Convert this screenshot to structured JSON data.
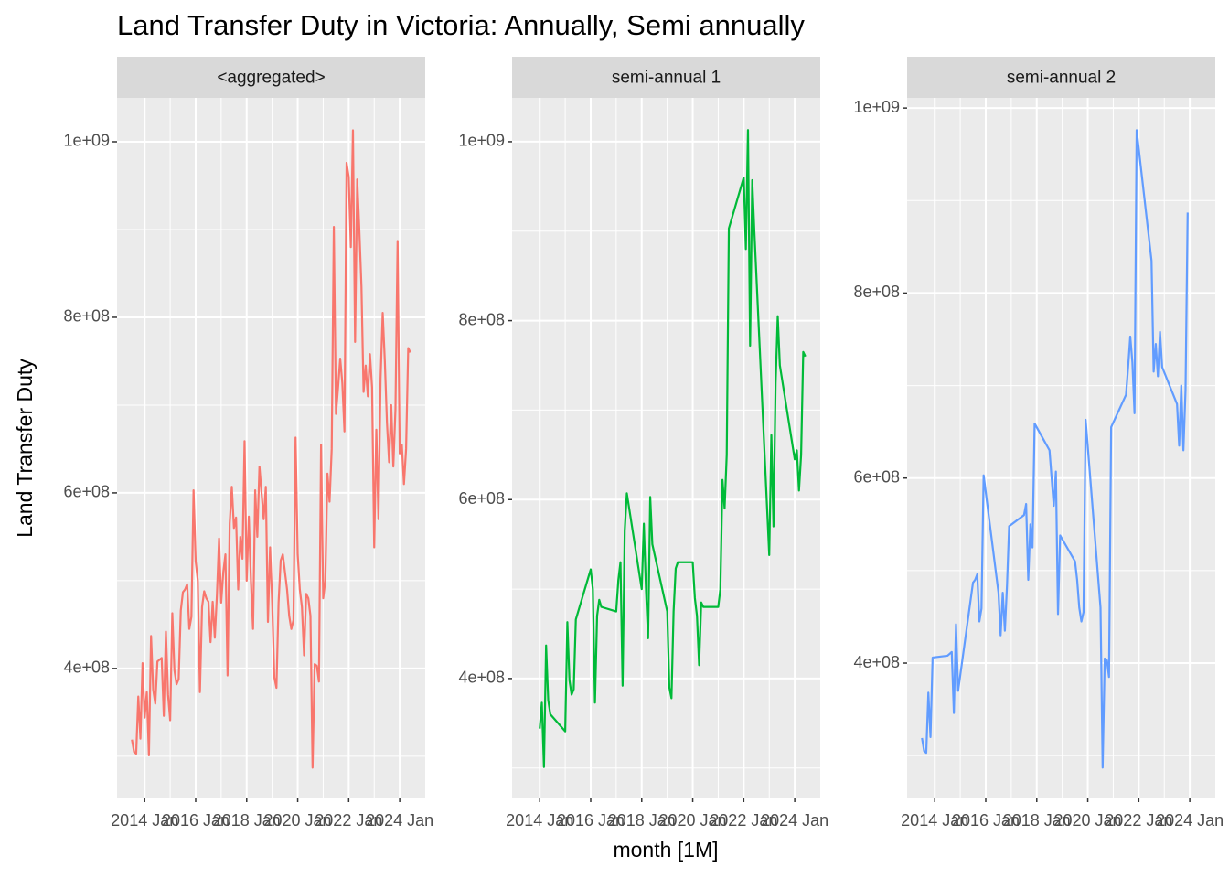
{
  "chart_data": {
    "type": "line",
    "title": "Land Transfer Duty in Victoria: Annually, Semi annually",
    "x_label": "month [1M]",
    "y_label": "Land Transfer Duty",
    "grid": true,
    "facets": [
      {
        "name": "<aggregated>",
        "color": "#F8766D",
        "xlim": [
          "2012 Dec",
          "2025 Jan"
        ],
        "xticks": [
          "2014 Jan",
          "2016 Jan",
          "2018 Jan",
          "2020 Jan",
          "2022 Jan",
          "2024 Jan"
        ],
        "x_minor_ticks": [
          "2015 Jan",
          "2017 Jan",
          "2019 Jan",
          "2021 Jan",
          "2023 Jan"
        ],
        "ylim": [
          253000000.0,
          1050000000.0
        ],
        "yticks": [
          {
            "value": 400000000.0,
            "label": "4e+08"
          },
          {
            "value": 600000000.0,
            "label": "6e+08"
          },
          {
            "value": 800000000.0,
            "label": "8e+08"
          },
          {
            "value": 1000000000.0,
            "label": "1e+09"
          }
        ],
        "y_minor_ticks": [
          300000000.0,
          500000000.0,
          700000000.0,
          900000000.0
        ],
        "x": [
          "2013 Jul",
          "2013 Aug",
          "2013 Sep",
          "2013 Oct",
          "2013 Nov",
          "2013 Dec",
          "2014 Jan",
          "2014 Feb",
          "2014 Mar",
          "2014 Apr",
          "2014 May",
          "2014 Jun",
          "2014 Jul",
          "2014 Aug",
          "2014 Sep",
          "2014 Oct",
          "2014 Nov",
          "2014 Dec",
          "2015 Jan",
          "2015 Feb",
          "2015 Mar",
          "2015 Apr",
          "2015 May",
          "2015 Jun",
          "2015 Jul",
          "2015 Aug",
          "2015 Sep",
          "2015 Oct",
          "2015 Nov",
          "2015 Dec",
          "2016 Jan",
          "2016 Feb",
          "2016 Mar",
          "2016 Apr",
          "2016 May",
          "2016 Jun",
          "2016 Jul",
          "2016 Aug",
          "2016 Sep",
          "2016 Oct",
          "2016 Nov",
          "2016 Dec",
          "2017 Jan",
          "2017 Feb",
          "2017 Mar",
          "2017 Apr",
          "2017 May",
          "2017 Jun",
          "2017 Jul",
          "2017 Aug",
          "2017 Sep",
          "2017 Oct",
          "2017 Nov",
          "2017 Dec",
          "2018 Jan",
          "2018 Feb",
          "2018 Mar",
          "2018 Apr",
          "2018 May",
          "2018 Jun",
          "2018 Jul",
          "2018 Aug",
          "2018 Sep",
          "2018 Oct",
          "2018 Nov",
          "2018 Dec",
          "2019 Jan",
          "2019 Feb",
          "2019 Mar",
          "2019 Apr",
          "2019 May",
          "2019 Jun",
          "2019 Jul",
          "2019 Aug",
          "2019 Sep",
          "2019 Oct",
          "2019 Nov",
          "2019 Dec",
          "2020 Jan",
          "2020 Feb",
          "2020 Mar",
          "2020 Apr",
          "2020 May",
          "2020 Jun",
          "2020 Jul",
          "2020 Aug",
          "2020 Sep",
          "2020 Oct",
          "2020 Nov",
          "2020 Dec",
          "2021 Jan",
          "2021 Feb",
          "2021 Mar",
          "2021 Apr",
          "2021 May",
          "2021 Jun",
          "2021 Jul",
          "2021 Aug",
          "2021 Sep",
          "2021 Oct",
          "2021 Nov",
          "2021 Dec",
          "2022 Jan",
          "2022 Feb",
          "2022 Mar",
          "2022 Apr",
          "2022 May",
          "2022 Jun",
          "2022 Jul",
          "2022 Aug",
          "2022 Sep",
          "2022 Oct",
          "2022 Nov",
          "2022 Dec",
          "2023 Jan",
          "2023 Feb",
          "2023 Mar",
          "2023 Apr",
          "2023 May",
          "2023 Jun",
          "2023 Jul",
          "2023 Aug",
          "2023 Sep",
          "2023 Oct",
          "2023 Nov",
          "2023 Dec",
          "2024 Jan",
          "2024 Feb",
          "2024 Mar",
          "2024 Apr",
          "2024 May",
          "2024 Jun"
        ],
        "values": [
          319000000.0,
          305000000.0,
          303000000.0,
          368000000.0,
          320000000.0,
          406000000.0,
          344000000.0,
          373000000.0,
          301000000.0,
          437000000.0,
          376000000.0,
          360000000.0,
          408000000.0,
          410000000.0,
          412000000.0,
          346000000.0,
          442000000.0,
          370000000.0,
          341000000.0,
          463000000.0,
          398000000.0,
          382000000.0,
          388000000.0,
          466000000.0,
          487000000.0,
          490000000.0,
          496000000.0,
          445000000.0,
          459000000.0,
          603000000.0,
          522000000.0,
          500000000.0,
          373000000.0,
          470000000.0,
          488000000.0,
          480000000.0,
          476000000.0,
          430000000.0,
          476000000.0,
          435000000.0,
          484000000.0,
          548000000.0,
          475000000.0,
          510000000.0,
          530000000.0,
          392000000.0,
          565000000.0,
          607000000.0,
          560000000.0,
          572000000.0,
          490000000.0,
          550000000.0,
          525000000.0,
          659000000.0,
          500000000.0,
          573000000.0,
          500000000.0,
          445000000.0,
          603000000.0,
          550000000.0,
          630000000.0,
          600000000.0,
          570000000.0,
          607000000.0,
          453000000.0,
          538000000.0,
          475000000.0,
          390000000.0,
          378000000.0,
          475000000.0,
          523000000.0,
          530000000.0,
          510000000.0,
          490000000.0,
          460000000.0,
          445000000.0,
          455000000.0,
          663000000.0,
          530000000.0,
          490000000.0,
          470000000.0,
          415000000.0,
          485000000.0,
          480000000.0,
          460000000.0,
          287000000.0,
          405000000.0,
          403000000.0,
          385000000.0,
          655000000.0,
          480000000.0,
          500000000.0,
          622000000.0,
          590000000.0,
          650000000.0,
          903000000.0,
          690000000.0,
          720000000.0,
          753000000.0,
          725000000.0,
          670000000.0,
          976000000.0,
          960000000.0,
          880000000.0,
          1013000000.0,
          772000000.0,
          957000000.0,
          900000000.0,
          835000000.0,
          715000000.0,
          745000000.0,
          710000000.0,
          758000000.0,
          720000000.0,
          538000000.0,
          672000000.0,
          570000000.0,
          730000000.0,
          805000000.0,
          750000000.0,
          680000000.0,
          635000000.0,
          700000000.0,
          630000000.0,
          695000000.0,
          887000000.0,
          645000000.0,
          655000000.0,
          610000000.0,
          650000000.0,
          765000000.0,
          760000000.0
        ]
      },
      {
        "name": "semi-annual 1",
        "color": "#00BA38",
        "xlim": [
          "2012 Dec",
          "2025 Jan"
        ],
        "xticks": [
          "2014 Jan",
          "2016 Jan",
          "2018 Jan",
          "2020 Jan",
          "2022 Jan",
          "2024 Jan"
        ],
        "x_minor_ticks": [
          "2015 Jan",
          "2017 Jan",
          "2019 Jan",
          "2021 Jan",
          "2023 Jan"
        ],
        "ylim": [
          267000000.0,
          1049000000.0
        ],
        "yticks": [
          {
            "value": 400000000.0,
            "label": "4e+08"
          },
          {
            "value": 600000000.0,
            "label": "6e+08"
          },
          {
            "value": 800000000.0,
            "label": "8e+08"
          },
          {
            "value": 1000000000.0,
            "label": "1e+09"
          }
        ],
        "y_minor_ticks": [
          300000000.0,
          500000000.0,
          700000000.0,
          900000000.0
        ],
        "x": [
          "2014 Jan",
          "2014 Feb",
          "2014 Mar",
          "2014 Apr",
          "2014 May",
          "2014 Jun",
          "2015 Jan",
          "2015 Feb",
          "2015 Mar",
          "2015 Apr",
          "2015 May",
          "2015 Jun",
          "2016 Jan",
          "2016 Feb",
          "2016 Mar",
          "2016 Apr",
          "2016 May",
          "2016 Jun",
          "2017 Jan",
          "2017 Feb",
          "2017 Mar",
          "2017 Apr",
          "2017 May",
          "2017 Jun",
          "2018 Jan",
          "2018 Feb",
          "2018 Mar",
          "2018 Apr",
          "2018 May",
          "2018 Jun",
          "2019 Jan",
          "2019 Feb",
          "2019 Mar",
          "2019 Apr",
          "2019 May",
          "2019 Jun",
          "2020 Jan",
          "2020 Feb",
          "2020 Mar",
          "2020 Apr",
          "2020 May",
          "2020 Jun",
          "2021 Jan",
          "2021 Feb",
          "2021 Mar",
          "2021 Apr",
          "2021 May",
          "2021 Jun",
          "2022 Jan",
          "2022 Feb",
          "2022 Mar",
          "2022 Apr",
          "2022 May",
          "2022 Jun",
          "2023 Jan",
          "2023 Feb",
          "2023 Mar",
          "2023 Apr",
          "2023 May",
          "2023 Jun",
          "2024 Jan",
          "2024 Feb",
          "2024 Mar",
          "2024 Apr",
          "2024 May",
          "2024 Jun"
        ],
        "values": [
          344000000.0,
          373000000.0,
          301000000.0,
          437000000.0,
          376000000.0,
          360000000.0,
          341000000.0,
          463000000.0,
          398000000.0,
          382000000.0,
          388000000.0,
          466000000.0,
          522000000.0,
          500000000.0,
          373000000.0,
          470000000.0,
          488000000.0,
          480000000.0,
          475000000.0,
          510000000.0,
          530000000.0,
          392000000.0,
          565000000.0,
          607000000.0,
          500000000.0,
          573000000.0,
          500000000.0,
          445000000.0,
          603000000.0,
          550000000.0,
          475000000.0,
          390000000.0,
          378000000.0,
          475000000.0,
          523000000.0,
          530000000.0,
          530000000.0,
          490000000.0,
          470000000.0,
          415000000.0,
          485000000.0,
          480000000.0,
          480000000.0,
          500000000.0,
          622000000.0,
          590000000.0,
          650000000.0,
          903000000.0,
          960000000.0,
          880000000.0,
          1013000000.0,
          772000000.0,
          957000000.0,
          900000000.0,
          538000000.0,
          672000000.0,
          570000000.0,
          730000000.0,
          805000000.0,
          750000000.0,
          645000000.0,
          655000000.0,
          610000000.0,
          650000000.0,
          765000000.0,
          760000000.0
        ]
      },
      {
        "name": "semi-annual 2",
        "color": "#619CFF",
        "xlim": [
          "2012 Dec",
          "2025 Jan"
        ],
        "xticks": [
          "2014 Jan",
          "2016 Jan",
          "2018 Jan",
          "2020 Jan",
          "2022 Jan",
          "2024 Jan"
        ],
        "x_minor_ticks": [
          "2015 Jan",
          "2017 Jan",
          "2019 Jan",
          "2021 Jan",
          "2023 Jan"
        ],
        "ylim": [
          254700000.0,
          1011000000.0
        ],
        "yticks": [
          {
            "value": 400000000.0,
            "label": "4e+08"
          },
          {
            "value": 600000000.0,
            "label": "6e+08"
          },
          {
            "value": 800000000.0,
            "label": "8e+08"
          },
          {
            "value": 1000000000.0,
            "label": "1e+09"
          }
        ],
        "y_minor_ticks": [
          300000000.0,
          500000000.0,
          700000000.0,
          900000000.0
        ],
        "x": [
          "2013 Jul",
          "2013 Aug",
          "2013 Sep",
          "2013 Oct",
          "2013 Nov",
          "2013 Dec",
          "2014 Jul",
          "2014 Aug",
          "2014 Sep",
          "2014 Oct",
          "2014 Nov",
          "2014 Dec",
          "2015 Jul",
          "2015 Aug",
          "2015 Sep",
          "2015 Oct",
          "2015 Nov",
          "2015 Dec",
          "2016 Jul",
          "2016 Aug",
          "2016 Sep",
          "2016 Oct",
          "2016 Nov",
          "2016 Dec",
          "2017 Jul",
          "2017 Aug",
          "2017 Sep",
          "2017 Oct",
          "2017 Nov",
          "2017 Dec",
          "2018 Jul",
          "2018 Aug",
          "2018 Sep",
          "2018 Oct",
          "2018 Nov",
          "2018 Dec",
          "2019 Jul",
          "2019 Aug",
          "2019 Sep",
          "2019 Oct",
          "2019 Nov",
          "2019 Dec",
          "2020 Jul",
          "2020 Aug",
          "2020 Sep",
          "2020 Oct",
          "2020 Nov",
          "2020 Dec",
          "2021 Jul",
          "2021 Aug",
          "2021 Sep",
          "2021 Oct",
          "2021 Nov",
          "2021 Dec",
          "2022 Jul",
          "2022 Aug",
          "2022 Sep",
          "2022 Oct",
          "2022 Nov",
          "2022 Dec",
          "2023 Jul",
          "2023 Aug",
          "2023 Sep",
          "2023 Oct",
          "2023 Nov",
          "2023 Dec"
        ],
        "values": [
          319000000.0,
          305000000.0,
          303000000.0,
          368000000.0,
          320000000.0,
          406000000.0,
          408000000.0,
          410000000.0,
          412000000.0,
          346000000.0,
          442000000.0,
          370000000.0,
          487000000.0,
          490000000.0,
          496000000.0,
          445000000.0,
          459000000.0,
          603000000.0,
          476000000.0,
          430000000.0,
          476000000.0,
          435000000.0,
          484000000.0,
          548000000.0,
          560000000.0,
          572000000.0,
          490000000.0,
          550000000.0,
          525000000.0,
          659000000.0,
          630000000.0,
          600000000.0,
          570000000.0,
          607000000.0,
          453000000.0,
          538000000.0,
          510000000.0,
          490000000.0,
          460000000.0,
          445000000.0,
          455000000.0,
          663000000.0,
          460000000.0,
          287000000.0,
          405000000.0,
          403000000.0,
          385000000.0,
          655000000.0,
          690000000.0,
          720000000.0,
          753000000.0,
          725000000.0,
          670000000.0,
          976000000.0,
          835000000.0,
          715000000.0,
          745000000.0,
          710000000.0,
          758000000.0,
          720000000.0,
          680000000.0,
          635000000.0,
          700000000.0,
          630000000.0,
          695000000.0,
          887000000.0
        ]
      }
    ]
  }
}
